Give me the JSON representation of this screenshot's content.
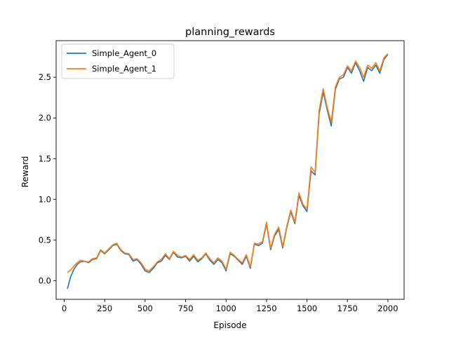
{
  "chart_data": {
    "type": "line",
    "title": "planning_rewards",
    "xlabel": "Episode",
    "ylabel": "Reward",
    "xlim": [
      -50,
      2100
    ],
    "ylim": [
      -0.23,
      2.95
    ],
    "xticks": [
      0,
      250,
      500,
      750,
      1000,
      1250,
      1500,
      1750,
      2000
    ],
    "xtick_labels": [
      "0",
      "250",
      "500",
      "750",
      "1000",
      "1250",
      "1500",
      "1750",
      "2000"
    ],
    "yticks": [
      0.0,
      0.5,
      1.0,
      1.5,
      2.0,
      2.5
    ],
    "ytick_labels": [
      "0.0",
      "0.5",
      "1.0",
      "1.5",
      "2.0",
      "2.5"
    ],
    "grid": false,
    "legend_position": "top-left",
    "x": [
      20,
      40,
      60,
      80,
      100,
      125,
      150,
      175,
      200,
      225,
      250,
      275,
      300,
      325,
      350,
      375,
      400,
      425,
      450,
      475,
      500,
      525,
      550,
      575,
      600,
      625,
      650,
      675,
      700,
      725,
      750,
      775,
      800,
      825,
      850,
      875,
      900,
      925,
      950,
      975,
      1000,
      1025,
      1050,
      1075,
      1100,
      1125,
      1150,
      1175,
      1200,
      1225,
      1250,
      1275,
      1300,
      1325,
      1350,
      1375,
      1400,
      1425,
      1450,
      1475,
      1500,
      1525,
      1550,
      1575,
      1600,
      1625,
      1650,
      1675,
      1700,
      1725,
      1750,
      1775,
      1800,
      1825,
      1850,
      1875,
      1900,
      1925,
      1950,
      1975,
      2000
    ],
    "series": [
      {
        "name": "Simple_Agent_0",
        "color": "#1f77b4",
        "values": [
          -0.1,
          0.05,
          0.14,
          0.2,
          0.23,
          0.24,
          0.22,
          0.26,
          0.27,
          0.37,
          0.33,
          0.38,
          0.43,
          0.45,
          0.37,
          0.33,
          0.32,
          0.24,
          0.26,
          0.2,
          0.12,
          0.1,
          0.15,
          0.22,
          0.24,
          0.31,
          0.26,
          0.35,
          0.29,
          0.28,
          0.3,
          0.24,
          0.3,
          0.23,
          0.27,
          0.33,
          0.25,
          0.2,
          0.26,
          0.22,
          0.12,
          0.33,
          0.3,
          0.25,
          0.2,
          0.3,
          0.15,
          0.45,
          0.43,
          0.46,
          0.7,
          0.38,
          0.55,
          0.63,
          0.4,
          0.65,
          0.85,
          0.7,
          1.05,
          0.92,
          0.85,
          1.35,
          1.3,
          2.05,
          2.32,
          2.1,
          1.9,
          2.35,
          2.48,
          2.5,
          2.62,
          2.55,
          2.68,
          2.58,
          2.45,
          2.62,
          2.58,
          2.65,
          2.55,
          2.72,
          2.78
        ]
      },
      {
        "name": "Simple_Agent_1",
        "color": "#ff7f0e",
        "values": [
          0.1,
          0.13,
          0.18,
          0.22,
          0.25,
          0.24,
          0.23,
          0.27,
          0.28,
          0.38,
          0.34,
          0.39,
          0.44,
          0.46,
          0.38,
          0.34,
          0.33,
          0.26,
          0.27,
          0.22,
          0.14,
          0.12,
          0.17,
          0.23,
          0.26,
          0.33,
          0.27,
          0.36,
          0.31,
          0.29,
          0.31,
          0.26,
          0.32,
          0.25,
          0.28,
          0.34,
          0.27,
          0.22,
          0.28,
          0.24,
          0.14,
          0.35,
          0.31,
          0.26,
          0.22,
          0.32,
          0.17,
          0.46,
          0.45,
          0.48,
          0.72,
          0.4,
          0.57,
          0.66,
          0.42,
          0.67,
          0.87,
          0.72,
          1.08,
          0.94,
          0.88,
          1.4,
          1.33,
          2.1,
          2.36,
          2.13,
          1.95,
          2.38,
          2.5,
          2.53,
          2.64,
          2.58,
          2.7,
          2.62,
          2.5,
          2.65,
          2.61,
          2.68,
          2.58,
          2.74,
          2.79
        ]
      }
    ]
  }
}
